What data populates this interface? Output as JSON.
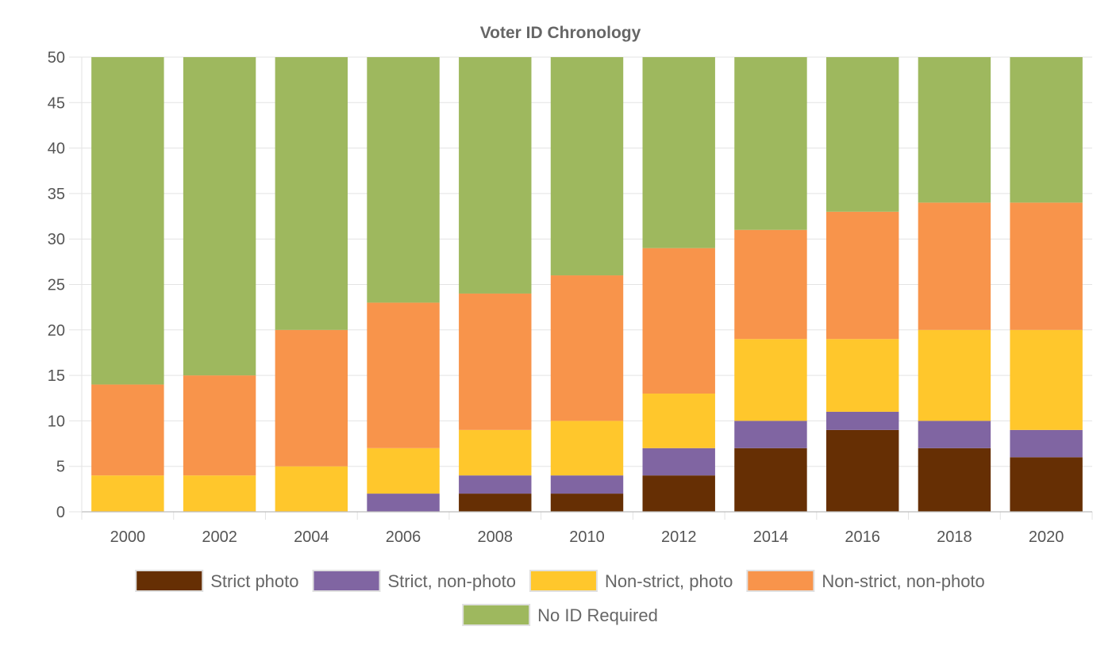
{
  "chart_data": {
    "type": "bar",
    "stacked": true,
    "title": "Voter ID Chronology",
    "xlabel": "",
    "ylabel": "",
    "ylim": [
      0,
      50
    ],
    "yticks": [
      0,
      5,
      10,
      15,
      20,
      25,
      30,
      35,
      40,
      45,
      50
    ],
    "grid": true,
    "legend_position": "bottom",
    "categories": [
      "2000",
      "2002",
      "2004",
      "2006",
      "2008",
      "2010",
      "2012",
      "2014",
      "2016",
      "2018",
      "2020"
    ],
    "series": [
      {
        "name": "Strict photo",
        "color": "#662f04",
        "values": [
          0,
          0,
          0,
          0,
          2,
          2,
          4,
          7,
          9,
          7,
          6
        ]
      },
      {
        "name": "Strict, non-photo",
        "color": "#8065a2",
        "values": [
          0,
          0,
          0,
          2,
          2,
          2,
          3,
          3,
          2,
          3,
          3
        ]
      },
      {
        "name": "Non-strict, photo",
        "color": "#ffc72c",
        "values": [
          4,
          4,
          5,
          5,
          5,
          6,
          6,
          9,
          8,
          10,
          11
        ]
      },
      {
        "name": "Non-strict, non-photo",
        "color": "#f8944b",
        "values": [
          10,
          11,
          15,
          16,
          15,
          16,
          16,
          12,
          14,
          14,
          14
        ]
      },
      {
        "name": "No ID Required",
        "color": "#9eb85e",
        "values": [
          36,
          35,
          30,
          27,
          26,
          24,
          21,
          19,
          17,
          16,
          16
        ]
      }
    ]
  }
}
